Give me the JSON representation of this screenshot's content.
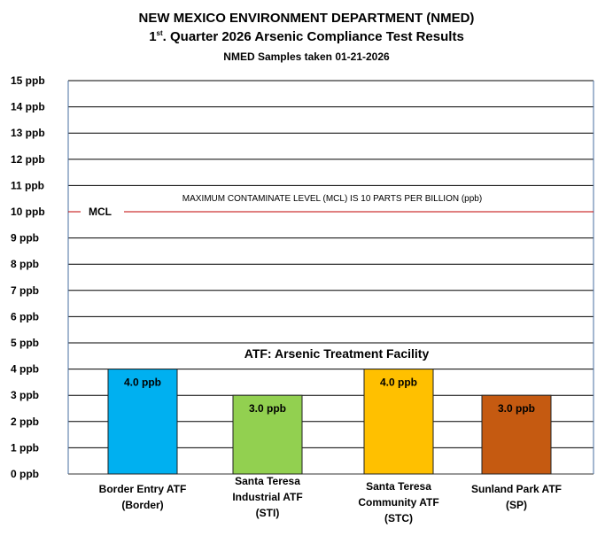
{
  "title": "NEW MEXICO ENVIRONMENT DEPARTMENT (NMED)",
  "subtitle_prefix": "1",
  "subtitle_sup": "st",
  "subtitle_rest": ". Quarter 2026 Arsenic Compliance Test Results",
  "sample_note": "NMED Samples taken 01-21-2026",
  "chart_data": {
    "type": "bar",
    "categories": [
      "Border Entry ATF\n(Border)",
      "Santa Teresa\nIndustrial ATF\n(STI)",
      "Santa Teresa\nCommunity ATF\n(STC)",
      "Sunland Park ATF\n(SP)"
    ],
    "values": [
      4.0,
      3.0,
      4.0,
      3.0
    ],
    "data_labels": [
      "4.0 ppb",
      "3.0 ppb",
      "4.0 ppb",
      "3.0 ppb"
    ],
    "colors": [
      "#00b0f0",
      "#92d050",
      "#ffc000",
      "#c55a11"
    ],
    "ylim": [
      0,
      15
    ],
    "yticks": [
      "0 ppb",
      "1 ppb",
      "2 ppb",
      "3 ppb",
      "4 ppb",
      "5 ppb",
      "6 ppb",
      "7 ppb",
      "8 ppb",
      "9 ppb",
      "10 ppb",
      "11 ppb",
      "12 ppb",
      "13 ppb",
      "14 ppb",
      "15 ppb"
    ],
    "grid": true,
    "mcl": {
      "value": 10,
      "label": "MCL",
      "color": "#c00000",
      "note": "MAXIMUM CONTAMINATE LEVEL (MCL) IS 10 PARTS PER BILLION (ppb)"
    },
    "annotation": "ATF: Arsenic Treatment Facility"
  }
}
